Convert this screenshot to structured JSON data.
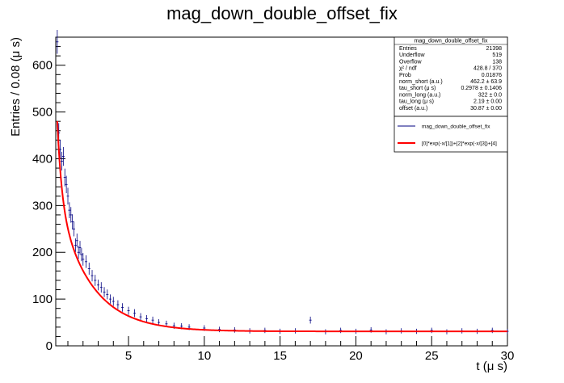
{
  "chart_data": {
    "type": "scatter",
    "title": "mag_down_double_offset_fix",
    "xlabel": "t (μ s)",
    "ylabel": "Entries / 0.08 (μ s)",
    "xlim": [
      0.2,
      30
    ],
    "ylim": [
      0,
      660
    ],
    "x_ticks": [
      5,
      10,
      15,
      20,
      25,
      30
    ],
    "y_ticks": [
      0,
      100,
      200,
      300,
      400,
      500,
      600
    ],
    "bin_width": 0.08,
    "series": [
      {
        "name": "mag_down_double_offset_fix",
        "style": "error-bars",
        "color": "#000080",
        "points": [
          [
            0.3,
            650
          ],
          [
            0.4,
            455
          ],
          [
            0.5,
            420
          ],
          [
            0.6,
            395
          ],
          [
            0.7,
            405
          ],
          [
            0.8,
            360
          ],
          [
            0.9,
            345
          ],
          [
            1.0,
            320
          ],
          [
            1.1,
            290
          ],
          [
            1.2,
            280
          ],
          [
            1.3,
            265
          ],
          [
            1.4,
            250
          ],
          [
            1.5,
            215
          ],
          [
            1.6,
            225
          ],
          [
            1.7,
            200
          ],
          [
            1.8,
            210
          ],
          [
            1.9,
            195
          ],
          [
            2.0,
            185
          ],
          [
            2.2,
            180
          ],
          [
            2.4,
            165
          ],
          [
            2.6,
            150
          ],
          [
            2.8,
            140
          ],
          [
            3.0,
            130
          ],
          [
            3.2,
            125
          ],
          [
            3.4,
            115
          ],
          [
            3.6,
            110
          ],
          [
            3.8,
            100
          ],
          [
            4.0,
            95
          ],
          [
            4.3,
            88
          ],
          [
            4.6,
            82
          ],
          [
            5.0,
            75
          ],
          [
            5.4,
            70
          ],
          [
            5.8,
            62
          ],
          [
            6.2,
            58
          ],
          [
            6.6,
            55
          ],
          [
            7.0,
            50
          ],
          [
            7.5,
            47
          ],
          [
            8.0,
            43
          ],
          [
            8.5,
            42
          ],
          [
            9.0,
            40
          ],
          [
            10.0,
            38
          ],
          [
            11.0,
            35
          ],
          [
            12.0,
            34
          ],
          [
            13.0,
            32
          ],
          [
            14.0,
            33
          ],
          [
            15.0,
            31
          ],
          [
            16.0,
            32
          ],
          [
            17.0,
            55
          ],
          [
            18.0,
            30
          ],
          [
            19.0,
            33
          ],
          [
            20.0,
            31
          ],
          [
            21.0,
            34
          ],
          [
            22.0,
            30
          ],
          [
            23.0,
            32
          ],
          [
            24.0,
            31
          ],
          [
            25.0,
            33
          ],
          [
            26.0,
            30
          ],
          [
            27.0,
            32
          ],
          [
            28.0,
            31
          ],
          [
            29.0,
            33
          ],
          [
            30.0,
            31
          ]
        ]
      },
      {
        "name": "[0]*exp(-x/[1])+[2]*exp(-x/[3])+[4]",
        "style": "line",
        "color": "#ff0000",
        "params": {
          "norm_short": 462.2,
          "tau_short": 0.2978,
          "norm_long": 322,
          "tau_long": 2.19,
          "offset": 30.87
        }
      }
    ],
    "stats_box": {
      "title": "mag_down_double_offset_fix",
      "rows": [
        {
          "label": "Entries",
          "value": "21398"
        },
        {
          "label": "Underflow",
          "value": "519"
        },
        {
          "label": "Overflow",
          "value": "138"
        },
        {
          "label": "χ² / ndf",
          "value": "428.8 / 370"
        },
        {
          "label": "Prob",
          "value": "0.01876"
        },
        {
          "label": "norm_short (a.u.)",
          "value": "462.2 ± 63.9"
        },
        {
          "label": "tau_short (μ s)",
          "value": "0.2978 ± 0.1406"
        },
        {
          "label": "norm_long (a.u.)",
          "value": "322 ± 0.0"
        },
        {
          "label": "tau_long (μ s)",
          "value": "2.19 ± 0.00"
        },
        {
          "label": "offset (a.u.)",
          "value": "30.87 ± 0.00"
        }
      ]
    },
    "legend": {
      "position": "top-right",
      "entries": [
        {
          "label": "mag_down_double_offset_fix",
          "color": "#000080"
        },
        {
          "label": "[0]*exp(-x/[1])+[2]*exp(-x/[3])+[4]",
          "color": "#ff0000"
        }
      ]
    }
  }
}
